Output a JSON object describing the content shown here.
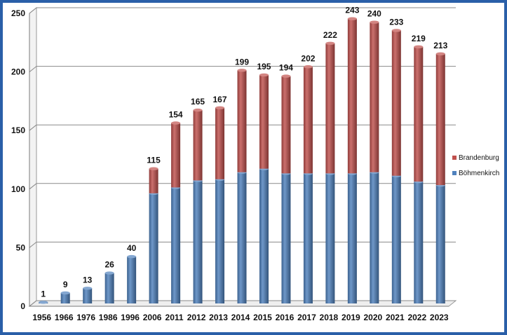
{
  "chart_data": {
    "type": "bar",
    "stacked": true,
    "title": "",
    "xlabel": "",
    "ylabel": "",
    "ylim": [
      0,
      250
    ],
    "yticks": [
      0,
      50,
      100,
      150,
      200,
      250
    ],
    "grid": true,
    "legend_position": "right",
    "categories": [
      "1956",
      "1966",
      "1976",
      "1986",
      "1996",
      "2006",
      "2011",
      "2012",
      "2013",
      "2014",
      "2015",
      "2016",
      "2017",
      "2018",
      "2019",
      "2020",
      "2021",
      "2022",
      "2023"
    ],
    "series": [
      {
        "name": "Böhmenkirch",
        "color": "#4f81bd",
        "values": [
          1,
          9,
          13,
          26,
          40,
          94,
          99,
          105,
          106,
          112,
          115,
          111,
          111,
          111,
          111,
          112,
          109,
          104,
          101
        ]
      },
      {
        "name": "Brandenburg",
        "color": "#c0504d",
        "values": [
          0,
          0,
          0,
          0,
          0,
          21,
          55,
          60,
          61,
          87,
          80,
          83,
          91,
          111,
          132,
          128,
          124,
          115,
          112
        ]
      }
    ],
    "totals": [
      1,
      9,
      13,
      26,
      40,
      115,
      154,
      165,
      167,
      199,
      195,
      194,
      202,
      222,
      243,
      240,
      233,
      219,
      213
    ]
  }
}
